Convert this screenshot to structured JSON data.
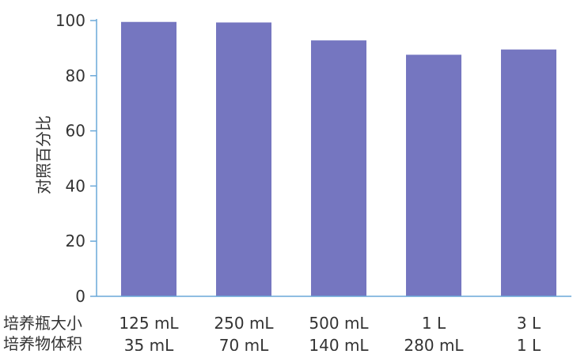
{
  "chart_data": {
    "type": "bar",
    "ylabel": "对照百分比",
    "ylim": [
      0,
      100
    ],
    "yticks": [
      0,
      20,
      40,
      60,
      80,
      100
    ],
    "row_headers": [
      "培养瓶大小",
      "培养物体积"
    ],
    "categories": [
      [
        "125 mL",
        "35 mL"
      ],
      [
        "250 mL",
        "70 mL"
      ],
      [
        "500 mL",
        "140 mL"
      ],
      [
        "1 L",
        "280 mL"
      ],
      [
        "3 L",
        "1 L"
      ]
    ],
    "values": [
      99.5,
      99.3,
      92.8,
      87.6,
      89.5
    ],
    "bar_color": "#7576c0",
    "axis_color": "#6aa8d8",
    "grid": false,
    "legend": false
  }
}
